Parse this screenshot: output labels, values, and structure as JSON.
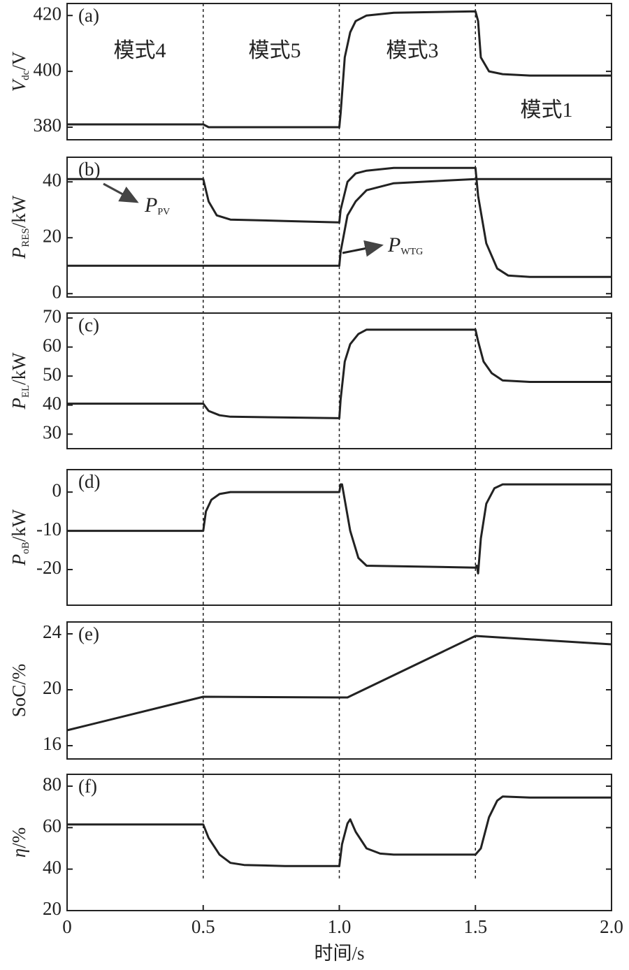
{
  "chart_data": [
    {
      "type": "line",
      "panel_label": "(a)",
      "ylabel": {
        "main": "V",
        "sub": "dc",
        "unit": "/V"
      },
      "ylabel_italic": true,
      "xlim": [
        0,
        2
      ],
      "ylim": [
        375.5,
        424.3
      ],
      "yticks": [
        380,
        400,
        420
      ],
      "annotations": [
        "模式4",
        "模式5",
        "模式3",
        "模式1"
      ],
      "x": [
        0,
        0.5,
        0.52,
        1.0,
        1.005,
        1.02,
        1.04,
        1.06,
        1.1,
        1.2,
        1.5,
        1.51,
        1.52,
        1.55,
        1.6,
        1.7,
        2.0
      ],
      "series": [
        {
          "color": "#222222",
          "values": [
            381,
            381,
            380,
            380,
            385,
            405,
            414,
            418,
            420,
            421,
            421.5,
            418,
            405,
            400,
            399,
            398.5,
            398.5
          ]
        }
      ]
    },
    {
      "type": "line",
      "panel_label": "(b)",
      "ylabel": {
        "main": "P",
        "sub": "RES",
        "unit": "/kW"
      },
      "ylabel_italic": true,
      "xlim": [
        0,
        2
      ],
      "ylim": [
        -1.2,
        48.8
      ],
      "yticks": [
        0,
        20,
        40
      ],
      "x": [
        0,
        0.5,
        0.52,
        0.55,
        0.6,
        0.8,
        1.0,
        1.005,
        1.03,
        1.06,
        1.1,
        1.2,
        1.5,
        1.51,
        1.54,
        1.58,
        1.62,
        1.7,
        2.0
      ],
      "series": [
        {
          "name": "P",
          "name_sub": "PV",
          "color": "#222222",
          "values": [
            41,
            41,
            33,
            28,
            26.5,
            26,
            25.5,
            30,
            40,
            43,
            44,
            45,
            45,
            35,
            18,
            9,
            6.5,
            6,
            6
          ]
        },
        {
          "name": "P",
          "name_sub": "WTG",
          "color": "#222222",
          "values": [
            10,
            10,
            10,
            10,
            10,
            10,
            10,
            15,
            28,
            33,
            37,
            39.5,
            41,
            41,
            41,
            41,
            41,
            41,
            41
          ]
        }
      ]
    },
    {
      "type": "line",
      "panel_label": "(c)",
      "ylabel": {
        "main": "P",
        "sub": "EL",
        "unit": "/kW"
      },
      "ylabel_italic": true,
      "xlim": [
        0,
        2
      ],
      "ylim": [
        25,
        71.7
      ],
      "yticks": [
        30,
        40,
        50,
        60,
        70
      ],
      "x": [
        0,
        0.5,
        0.52,
        0.56,
        0.6,
        1.0,
        1.005,
        1.02,
        1.04,
        1.07,
        1.1,
        1.5,
        1.51,
        1.53,
        1.56,
        1.6,
        1.7,
        2.0
      ],
      "series": [
        {
          "color": "#222222",
          "values": [
            40.5,
            40.5,
            38,
            36.5,
            36,
            35.5,
            42,
            55,
            61,
            64.5,
            66,
            66,
            62,
            55,
            51,
            48.5,
            48,
            48
          ]
        }
      ]
    },
    {
      "type": "line",
      "panel_label": "(d)",
      "ylabel": {
        "main": "P",
        "sub": "oB",
        "unit": "/kW"
      },
      "ylabel_italic": true,
      "xlim": [
        0,
        2
      ],
      "ylim": [
        -29.2,
        5.8
      ],
      "yticks": [
        -20,
        -10,
        0
      ],
      "x": [
        0,
        0.5,
        0.51,
        0.53,
        0.56,
        0.6,
        1.0,
        1.005,
        1.01,
        1.02,
        1.04,
        1.07,
        1.1,
        1.5,
        1.505,
        1.51,
        1.52,
        1.54,
        1.57,
        1.6,
        2.0
      ],
      "series": [
        {
          "color": "#222222",
          "values": [
            -10,
            -10,
            -5,
            -2,
            -0.5,
            0,
            0,
            2,
            2,
            -2,
            -10,
            -17,
            -19,
            -19.5,
            -19,
            -21,
            -12,
            -3,
            1,
            2,
            2
          ]
        }
      ]
    },
    {
      "type": "line",
      "panel_label": "(e)",
      "ylabel": {
        "main": "SoC",
        "unit": "/%"
      },
      "ylabel_italic": false,
      "xlim": [
        0,
        2
      ],
      "ylim": [
        15.05,
        24.85
      ],
      "yticks": [
        16,
        20,
        24
      ],
      "x": [
        0,
        0.5,
        1.0,
        1.03,
        1.5,
        2.0
      ],
      "series": [
        {
          "color": "#222222",
          "values": [
            17.1,
            19.5,
            19.45,
            19.45,
            23.85,
            23.25
          ]
        }
      ]
    },
    {
      "type": "line",
      "panel_label": "(f)",
      "ylabel": {
        "main": "η",
        "unit": "/%"
      },
      "ylabel_italic": true,
      "xlim": [
        0,
        2
      ],
      "ylim": [
        20,
        85.7
      ],
      "yticks": [
        20,
        40,
        60,
        80
      ],
      "xticks": [
        0,
        0.5,
        {
          "value": 1.0,
          "label": "1.0"
        },
        {
          "value": 1.5,
          "label": "1.5"
        },
        {
          "value": 2.0,
          "label": "2.0"
        }
      ],
      "xlabel": "时间/s",
      "vlines": [
        0.5,
        1.0,
        1.5
      ],
      "x": [
        0,
        0.5,
        0.52,
        0.56,
        0.6,
        0.65,
        0.8,
        1.0,
        1.01,
        1.03,
        1.04,
        1.06,
        1.1,
        1.15,
        1.2,
        1.5,
        1.52,
        1.55,
        1.58,
        1.6,
        1.7,
        2.0
      ],
      "series": [
        {
          "color": "#222222",
          "values": [
            61.5,
            61.5,
            55,
            47,
            43,
            42,
            41.5,
            41.5,
            52,
            62,
            64,
            58,
            50,
            47.5,
            47,
            47,
            50,
            65,
            73,
            75,
            74.5,
            74.5
          ]
        }
      ]
    }
  ]
}
